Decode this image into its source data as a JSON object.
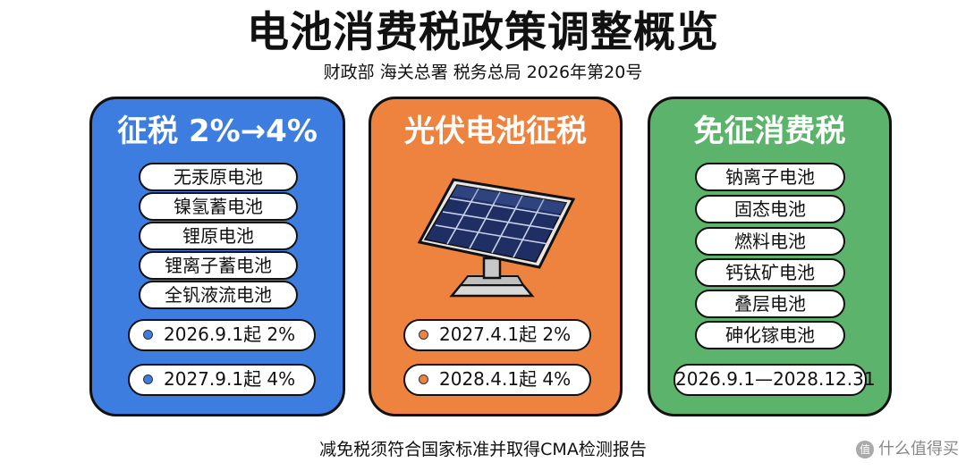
{
  "header": {
    "title": "电池消费税政策调整概览",
    "subtitle": "财政部 海关总署 税务总局 2026年第20号"
  },
  "panels": {
    "left": {
      "heading": "征税 2%→4%",
      "color": "#3d7de0",
      "items": [
        "无汞原电池",
        "镍氢蓄电池",
        "锂原电池",
        "锂离子蓄电池",
        "全钒液流电池"
      ],
      "dates": [
        "2026.9.1起 2%",
        "2027.9.1起 4%"
      ]
    },
    "middle": {
      "heading": "光伏电池征税",
      "color": "#ee8340",
      "image_icon": "solar-panel-icon",
      "dates": [
        "2027.4.1起 2%",
        "2028.4.1起 4%"
      ]
    },
    "right": {
      "heading": "免征消费税",
      "color": "#5cb46c",
      "items": [
        "钠离子电池",
        "固态电池",
        "燃料电池",
        "钙钛矿电池",
        "叠层电池",
        "砷化镓电池"
      ],
      "period": "2026.9.1—2028.12.31"
    }
  },
  "footer": {
    "note": "减免税须符合国家标准并取得CMA检测报告"
  },
  "watermark": {
    "text": "什么值得买"
  }
}
